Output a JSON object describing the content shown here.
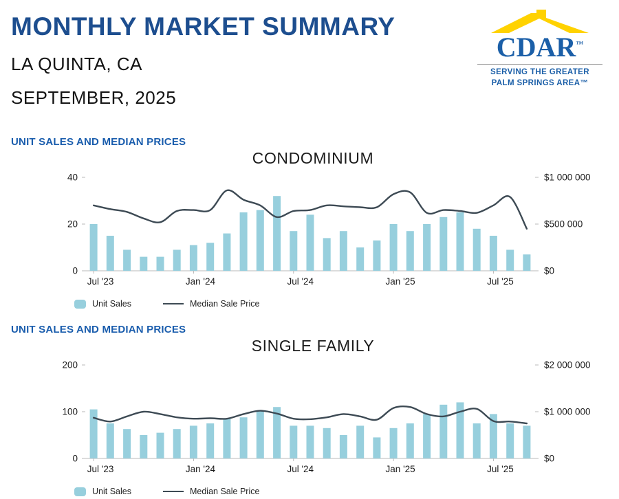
{
  "header": {
    "title": "MONTHLY MARKET SUMMARY",
    "location": "LA QUINTA, CA",
    "period": "SEPTEMBER, 2025"
  },
  "logo": {
    "name": "CDAR",
    "tm": "™",
    "tagline_line1": "SERVING THE GREATER",
    "tagline_line2": "PALM SPRINGS AREA™"
  },
  "legend": {
    "unit_sales": "Unit Sales",
    "median_price": "Median Sale Price"
  },
  "colors": {
    "title_blue": "#1d4e8f",
    "section_blue": "#1a5dad",
    "bar_fill": "#97cfdd",
    "line_color": "#3d4a54",
    "logo_blue": "#1b5fa8",
    "logo_yellow": "#ffd200",
    "axis_line": "#b9b9b9"
  },
  "chart_data": [
    {
      "type": "bar",
      "section_label": "UNIT SALES AND MEDIAN PRICES",
      "title": "CONDOMINIUM",
      "categories": [
        "Jul '23",
        "Aug '23",
        "Sep '23",
        "Oct '23",
        "Nov '23",
        "Dec '23",
        "Jan '24",
        "Feb '24",
        "Mar '24",
        "Apr '24",
        "May '24",
        "Jun '24",
        "Jul '24",
        "Aug '24",
        "Sep '24",
        "Oct '24",
        "Nov '24",
        "Dec '24",
        "Jan '25",
        "Feb '25",
        "Mar '25",
        "Apr '25",
        "May '25",
        "Jun '25",
        "Jul '25",
        "Aug '25",
        "Sep '25"
      ],
      "x_tick_labels": [
        "Jul '23",
        "Jan '24",
        "Jul '24",
        "Jan '25",
        "Jul '25"
      ],
      "x_tick_indices": [
        0,
        6,
        12,
        18,
        24
      ],
      "series": [
        {
          "name": "Unit Sales",
          "axis": "left",
          "values": [
            20,
            15,
            9,
            6,
            6,
            9,
            11,
            12,
            16,
            25,
            26,
            32,
            17,
            24,
            14,
            17,
            10,
            13,
            20,
            17,
            20,
            23,
            25,
            18,
            15,
            9,
            7
          ]
        },
        {
          "name": "Median Sale Price",
          "axis": "right",
          "values": [
            700000,
            660000,
            630000,
            560000,
            520000,
            640000,
            650000,
            650000,
            860000,
            760000,
            700000,
            575000,
            640000,
            650000,
            700000,
            690000,
            680000,
            680000,
            820000,
            840000,
            620000,
            650000,
            640000,
            620000,
            700000,
            790000,
            450000
          ]
        }
      ],
      "left_axis": {
        "ticks": [
          0,
          20,
          40
        ],
        "max": 40
      },
      "right_axis": {
        "ticks": [
          "$0",
          "$500 000",
          "$1 000 000"
        ],
        "max": 1000000
      },
      "legend_position": "bottom-left",
      "grid": false
    },
    {
      "type": "bar",
      "section_label": "UNIT SALES AND MEDIAN PRICES",
      "title": "SINGLE FAMILY",
      "categories": [
        "Jul '23",
        "Aug '23",
        "Sep '23",
        "Oct '23",
        "Nov '23",
        "Dec '23",
        "Jan '24",
        "Feb '24",
        "Mar '24",
        "Apr '24",
        "May '24",
        "Jun '24",
        "Jul '24",
        "Aug '24",
        "Sep '24",
        "Oct '24",
        "Nov '24",
        "Dec '24",
        "Jan '25",
        "Feb '25",
        "Mar '25",
        "Apr '25",
        "May '25",
        "Jun '25",
        "Jul '25",
        "Aug '25",
        "Sep '25"
      ],
      "x_tick_labels": [
        "Jul '23",
        "Jan '24",
        "Jul '24",
        "Jan '25",
        "Jul '25"
      ],
      "x_tick_indices": [
        0,
        6,
        12,
        18,
        24
      ],
      "series": [
        {
          "name": "Unit Sales",
          "axis": "left",
          "values": [
            105,
            75,
            63,
            50,
            55,
            63,
            70,
            75,
            85,
            88,
            102,
            110,
            70,
            70,
            65,
            50,
            70,
            45,
            65,
            75,
            95,
            115,
            120,
            75,
            95,
            75,
            70
          ]
        },
        {
          "name": "Median Sale Price",
          "axis": "right",
          "values": [
            870000,
            790000,
            900000,
            1000000,
            950000,
            880000,
            850000,
            860000,
            850000,
            950000,
            1020000,
            960000,
            850000,
            840000,
            880000,
            950000,
            900000,
            830000,
            1080000,
            1100000,
            950000,
            900000,
            1000000,
            1060000,
            800000,
            790000,
            750000
          ]
        }
      ],
      "left_axis": {
        "ticks": [
          0,
          100,
          200
        ],
        "max": 200
      },
      "right_axis": {
        "ticks": [
          "$0",
          "$1 000 000",
          "$2 000 000"
        ],
        "max": 2000000
      },
      "legend_position": "bottom-left",
      "grid": false
    }
  ]
}
